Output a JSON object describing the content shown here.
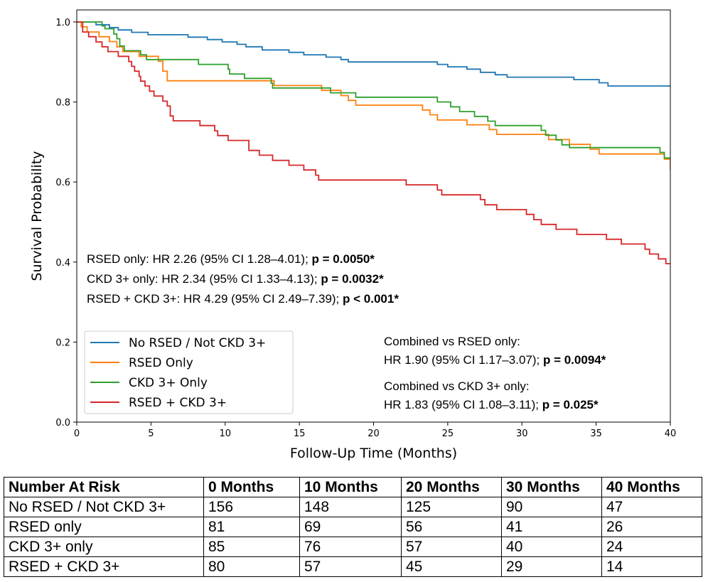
{
  "chart_data": {
    "type": "line",
    "step": true,
    "xlabel": "Follow-Up Time (Months)",
    "ylabel": "Survival Probability",
    "xlim": [
      0,
      40
    ],
    "ylim": [
      0,
      1.03
    ],
    "xticks": [
      0,
      5,
      10,
      15,
      20,
      25,
      30,
      35,
      40
    ],
    "xtick_labels": [
      "0",
      "5",
      "10",
      "15",
      "20",
      "25",
      "30",
      "35",
      "40"
    ],
    "yticks": [
      0.0,
      0.2,
      0.4,
      0.6,
      0.8,
      1.0
    ],
    "ytick_labels": [
      "0.0",
      "0.2",
      "0.4",
      "0.6",
      "0.8",
      "1.0"
    ],
    "grid": false,
    "legend_position": "lower-left",
    "series": [
      {
        "name": "No RSED / Not CKD 3+",
        "color": "#1f77b4",
        "points": [
          [
            0,
            1.0
          ],
          [
            1.3,
            0.993
          ],
          [
            2.2,
            0.986
          ],
          [
            2.8,
            0.98
          ],
          [
            3.7,
            0.974
          ],
          [
            4.8,
            0.968
          ],
          [
            7.5,
            0.962
          ],
          [
            8.8,
            0.956
          ],
          [
            9.8,
            0.95
          ],
          [
            10.8,
            0.944
          ],
          [
            11.4,
            0.938
          ],
          [
            12.5,
            0.93
          ],
          [
            14.3,
            0.924
          ],
          [
            15.3,
            0.918
          ],
          [
            16.8,
            0.912
          ],
          [
            17.8,
            0.906
          ],
          [
            18.3,
            0.9
          ],
          [
            24.3,
            0.894
          ],
          [
            25,
            0.888
          ],
          [
            26.3,
            0.882
          ],
          [
            27.2,
            0.874
          ],
          [
            28.2,
            0.868
          ],
          [
            29,
            0.862
          ],
          [
            33.5,
            0.856
          ],
          [
            35.2,
            0.848
          ],
          [
            35.8,
            0.84
          ],
          [
            40,
            0.84
          ]
        ]
      },
      {
        "name": "RSED Only",
        "color": "#ff7f0e",
        "points": [
          [
            0,
            1.0
          ],
          [
            0.3,
            0.988
          ],
          [
            0.7,
            0.975
          ],
          [
            1.5,
            0.963
          ],
          [
            2.2,
            0.951
          ],
          [
            2.7,
            0.938
          ],
          [
            3.1,
            0.926
          ],
          [
            4.2,
            0.914
          ],
          [
            5.5,
            0.902
          ],
          [
            5.8,
            0.877
          ],
          [
            6.1,
            0.853
          ],
          [
            13.3,
            0.841
          ],
          [
            16.5,
            0.829
          ],
          [
            17.8,
            0.816
          ],
          [
            18.3,
            0.804
          ],
          [
            18.8,
            0.792
          ],
          [
            23.3,
            0.78
          ],
          [
            23.8,
            0.768
          ],
          [
            24.3,
            0.755
          ],
          [
            26.3,
            0.743
          ],
          [
            27.8,
            0.731
          ],
          [
            28.3,
            0.719
          ],
          [
            31.8,
            0.706
          ],
          [
            33.2,
            0.694
          ],
          [
            34.6,
            0.682
          ],
          [
            35.2,
            0.67
          ],
          [
            39.6,
            0.657
          ],
          [
            40,
            0.63
          ]
        ]
      },
      {
        "name": "CKD 3+ Only",
        "color": "#2ca02c",
        "points": [
          [
            0,
            1.0
          ],
          [
            1.7,
            0.99
          ],
          [
            1.9,
            0.983
          ],
          [
            2.5,
            0.97
          ],
          [
            2.7,
            0.958
          ],
          [
            2.9,
            0.94
          ],
          [
            3.2,
            0.928
          ],
          [
            4.3,
            0.918
          ],
          [
            4.7,
            0.906
          ],
          [
            6.2,
            0.906
          ],
          [
            8.2,
            0.894
          ],
          [
            10.2,
            0.882
          ],
          [
            10.3,
            0.87
          ],
          [
            11.3,
            0.859
          ],
          [
            13.1,
            0.847
          ],
          [
            13.2,
            0.835
          ],
          [
            17.1,
            0.823
          ],
          [
            18.8,
            0.812
          ],
          [
            24.3,
            0.8
          ],
          [
            25.2,
            0.788
          ],
          [
            25.8,
            0.776
          ],
          [
            26.8,
            0.764
          ],
          [
            27.7,
            0.752
          ],
          [
            28.2,
            0.741
          ],
          [
            31.3,
            0.729
          ],
          [
            31.6,
            0.717
          ],
          [
            32.3,
            0.705
          ],
          [
            32.7,
            0.693
          ],
          [
            33.2,
            0.686
          ],
          [
            39.3,
            0.674
          ],
          [
            39.6,
            0.66
          ],
          [
            40,
            0.66
          ]
        ]
      },
      {
        "name": "RSED + CKD 3+",
        "color": "#d62728",
        "points": [
          [
            0,
            1.0
          ],
          [
            0.4,
            0.975
          ],
          [
            0.8,
            0.963
          ],
          [
            1.3,
            0.95
          ],
          [
            1.7,
            0.938
          ],
          [
            2.1,
            0.926
          ],
          [
            2.8,
            0.914
          ],
          [
            3.5,
            0.914
          ],
          [
            3.5,
            0.901
          ],
          [
            3.7,
            0.889
          ],
          [
            3.9,
            0.877
          ],
          [
            4.2,
            0.864
          ],
          [
            4.3,
            0.852
          ],
          [
            4.6,
            0.84
          ],
          [
            4.9,
            0.827
          ],
          [
            5.2,
            0.815
          ],
          [
            5.8,
            0.802
          ],
          [
            6.1,
            0.79
          ],
          [
            6.3,
            0.765
          ],
          [
            6.5,
            0.753
          ],
          [
            8.3,
            0.741
          ],
          [
            9.3,
            0.728
          ],
          [
            9.5,
            0.716
          ],
          [
            10.2,
            0.704
          ],
          [
            11.6,
            0.679
          ],
          [
            12.3,
            0.667
          ],
          [
            13.2,
            0.654
          ],
          [
            14.3,
            0.642
          ],
          [
            15.3,
            0.63
          ],
          [
            16.1,
            0.617
          ],
          [
            16.3,
            0.605
          ],
          [
            22.2,
            0.593
          ],
          [
            24.3,
            0.58
          ],
          [
            24.6,
            0.568
          ],
          [
            27.2,
            0.556
          ],
          [
            27.5,
            0.543
          ],
          [
            28.3,
            0.531
          ],
          [
            30.3,
            0.519
          ],
          [
            30.8,
            0.506
          ],
          [
            31.3,
            0.494
          ],
          [
            32.3,
            0.482
          ],
          [
            33.7,
            0.469
          ],
          [
            35.7,
            0.457
          ],
          [
            36.7,
            0.445
          ],
          [
            38.3,
            0.432
          ],
          [
            38.6,
            0.42
          ],
          [
            39.2,
            0.408
          ],
          [
            39.7,
            0.396
          ],
          [
            40,
            0.396
          ]
        ]
      }
    ],
    "stats_text": [
      {
        "text": "RSED only: HR 2.26 (95% CI 1.28–4.01); ",
        "bold": "p = 0.0050*"
      },
      {
        "text": "CKD 3+ only: HR 2.34 (95% CI 1.33–4.13); ",
        "bold": "p = 0.0032*"
      },
      {
        "text": "RSED + CKD 3+: HR 4.29 (95% CI 2.49–7.39); ",
        "bold": "p < 0.001*"
      }
    ],
    "combined_text": [
      {
        "text": "Combined vs RSED only:",
        "bold": ""
      },
      {
        "text": "HR 1.90 (95% CI 1.17–3.07); ",
        "bold": "p = 0.0094*"
      },
      {
        "text": "Combined vs CKD 3+ only:",
        "bold": ""
      },
      {
        "text": "HR 1.83 (95% CI 1.08–3.11); ",
        "bold": "p = 0.025*"
      }
    ]
  },
  "risk_table": {
    "headers": [
      "Number At Risk",
      "0 Months",
      "10 Months",
      "20 Months",
      "30 Months",
      "40 Months"
    ],
    "rows": [
      [
        "No RSED / Not CKD 3+",
        "156",
        "148",
        "125",
        "90",
        "47"
      ],
      [
        "RSED only",
        "81",
        "69",
        "56",
        "41",
        "26"
      ],
      [
        "CKD 3+ only",
        "85",
        "76",
        "57",
        "40",
        "24"
      ],
      [
        "RSED + CKD 3+",
        "80",
        "57",
        "45",
        "29",
        "14"
      ]
    ]
  }
}
